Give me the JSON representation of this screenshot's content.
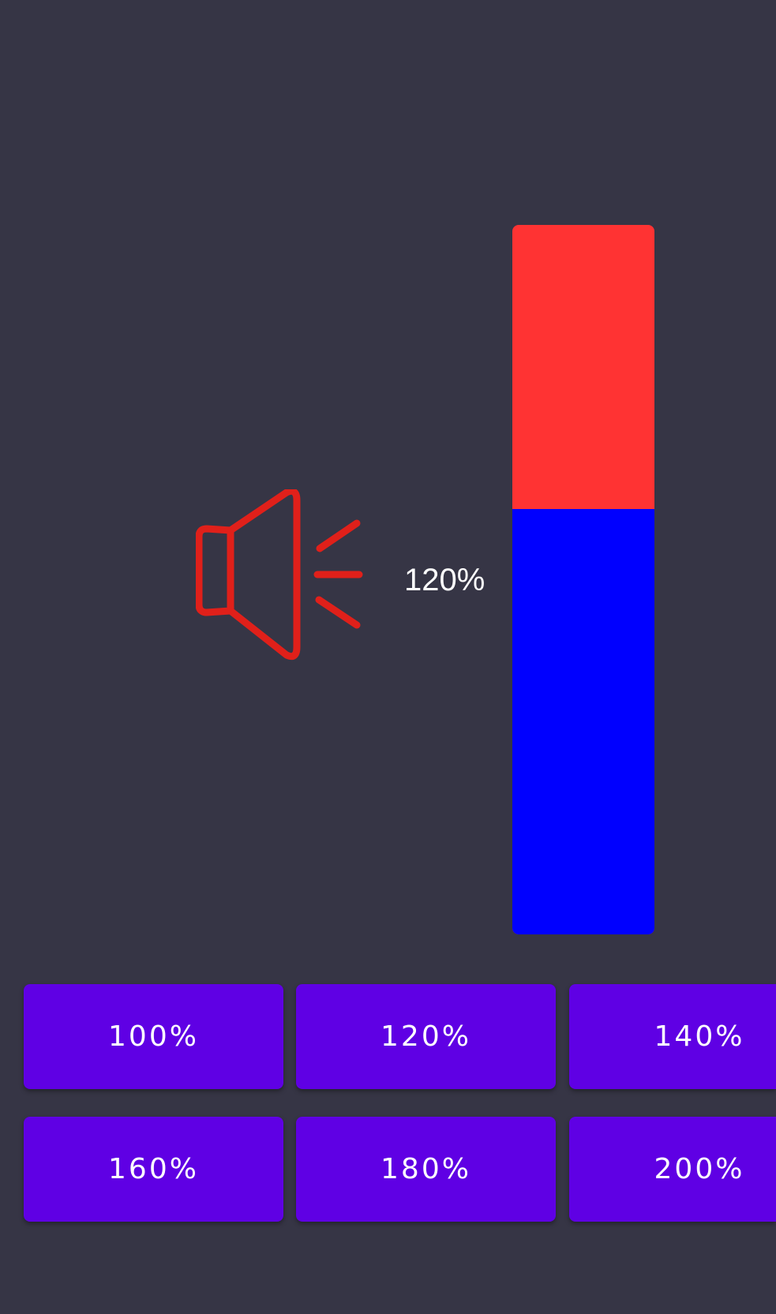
{
  "volume": {
    "label": "120%",
    "level_percent": 120,
    "max_percent": 200,
    "fill_color": "#0000ff",
    "track_color": "#ff3333",
    "icon": "speaker-icon",
    "icon_color": "#e0201a"
  },
  "presets": [
    {
      "label": "100%"
    },
    {
      "label": "120%"
    },
    {
      "label": "140%"
    },
    {
      "label": "160%"
    },
    {
      "label": "180%"
    },
    {
      "label": "200%"
    }
  ],
  "colors": {
    "background": "#363545",
    "button": "#5f00e4"
  }
}
